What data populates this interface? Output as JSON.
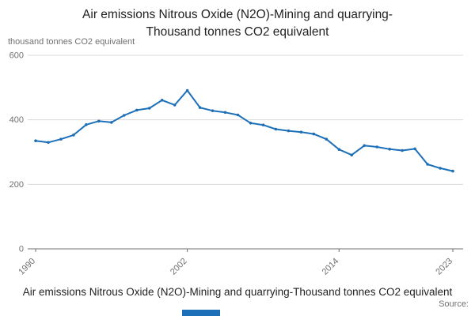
{
  "title": {
    "line1": "Air emissions Nitrous Oxide (N2O)-Mining and quarrying-",
    "line2": "Thousand tonnes CO2 equivalent"
  },
  "chart_data": {
    "type": "line",
    "title": "Air emissions Nitrous Oxide (N2O)-Mining and quarrying-Thousand tonnes CO2 equivalent",
    "ylabel": "thousand tonnes CO2 equivalent",
    "xlabel": "",
    "x": [
      1990,
      1991,
      1992,
      1993,
      1994,
      1995,
      1996,
      1997,
      1998,
      1999,
      2000,
      2001,
      2002,
      2003,
      2004,
      2005,
      2006,
      2007,
      2008,
      2009,
      2010,
      2011,
      2012,
      2013,
      2014,
      2015,
      2016,
      2017,
      2018,
      2019,
      2020,
      2021,
      2022,
      2023
    ],
    "values": [
      335,
      330,
      340,
      353,
      385,
      396,
      392,
      414,
      430,
      436,
      461,
      446,
      491,
      438,
      428,
      423,
      415,
      390,
      384,
      371,
      366,
      362,
      356,
      340,
      308,
      291,
      320,
      316,
      309,
      305,
      310,
      262,
      250,
      241
    ],
    "ylim": [
      0,
      600
    ],
    "yticks": [
      0,
      200,
      400,
      600
    ],
    "xticks": [
      1990,
      2002,
      2014,
      2023
    ],
    "grid": true,
    "legend": "none",
    "line_color": "#1d70b8",
    "grid_color": "#d9d9d9",
    "axis_color": "#707071",
    "tick_label_color": "#707071"
  },
  "footer": {
    "caption": "Air emissions Nitrous Oxide (N2O)-Mining and quarrying-Thousand tonnes CO2 equivalent",
    "source_label": "Source:"
  }
}
